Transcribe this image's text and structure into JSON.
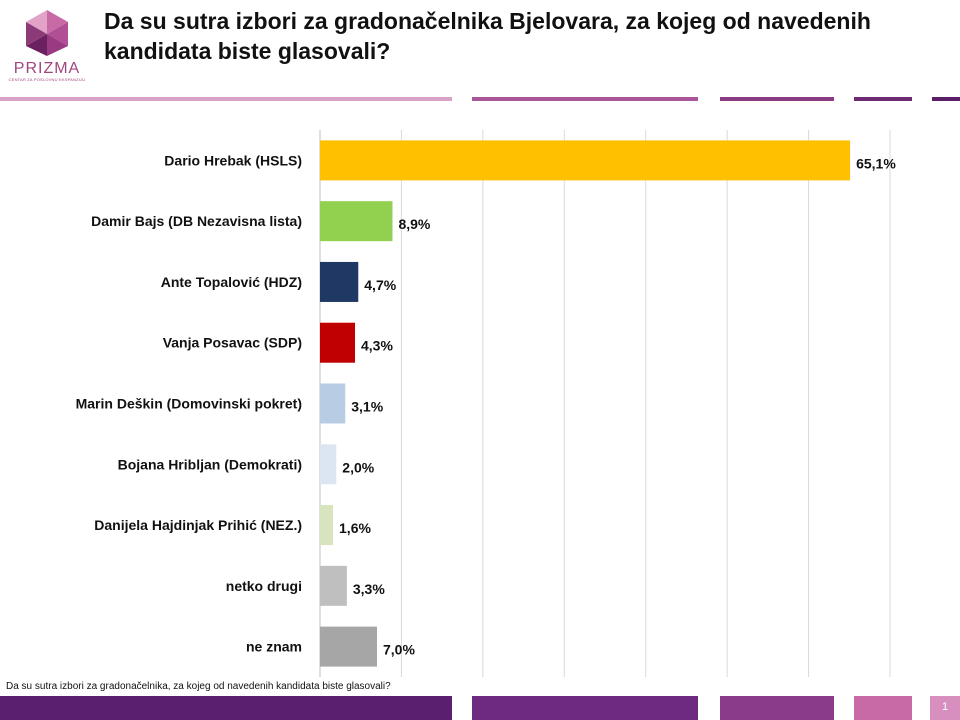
{
  "header": {
    "title": "Da su sutra izbori za gradonačelnika Bjelovara, za kojeg od navedenih kandidata biste glasovali?"
  },
  "logo": {
    "name": "PRIZMA",
    "tagline": "CENTAR ZA POSLOVNU EKSPANZIJU",
    "icon": "prism-icon"
  },
  "footer": {
    "note": "Da su sutra izbori za gradonačelnika, za kojeg od navedenih kandidata biste glasovali?",
    "page": "1"
  },
  "chart_data": {
    "type": "bar",
    "orientation": "horizontal",
    "categories": [
      "Dario Hrebak (HSLS)",
      "Damir Bajs (DB Nezavisna lista)",
      "Ante Topalović (HDZ)",
      "Vanja Posavac (SDP)",
      "Marin Deškin (Domovinski pokret)",
      "Bojana Hribljan (Demokrati)",
      "Danijela Hajdinjak Prihić (NEZ.)",
      "netko drugi",
      "ne znam"
    ],
    "values": [
      65.1,
      8.9,
      4.7,
      4.3,
      3.1,
      2.0,
      1.6,
      3.3,
      7.0
    ],
    "value_labels": [
      "65,1%",
      "8,9%",
      "4,7%",
      "4,3%",
      "3,1%",
      "2,0%",
      "1,6%",
      "3,3%",
      "7,0%"
    ],
    "colors": [
      "#ffc000",
      "#92d050",
      "#1f3864",
      "#c00000",
      "#b8cce4",
      "#dce6f2",
      "#d7e4bd",
      "#bfbfbf",
      "#a6a6a6"
    ],
    "xlim": [
      0,
      70
    ],
    "grid": true
  }
}
